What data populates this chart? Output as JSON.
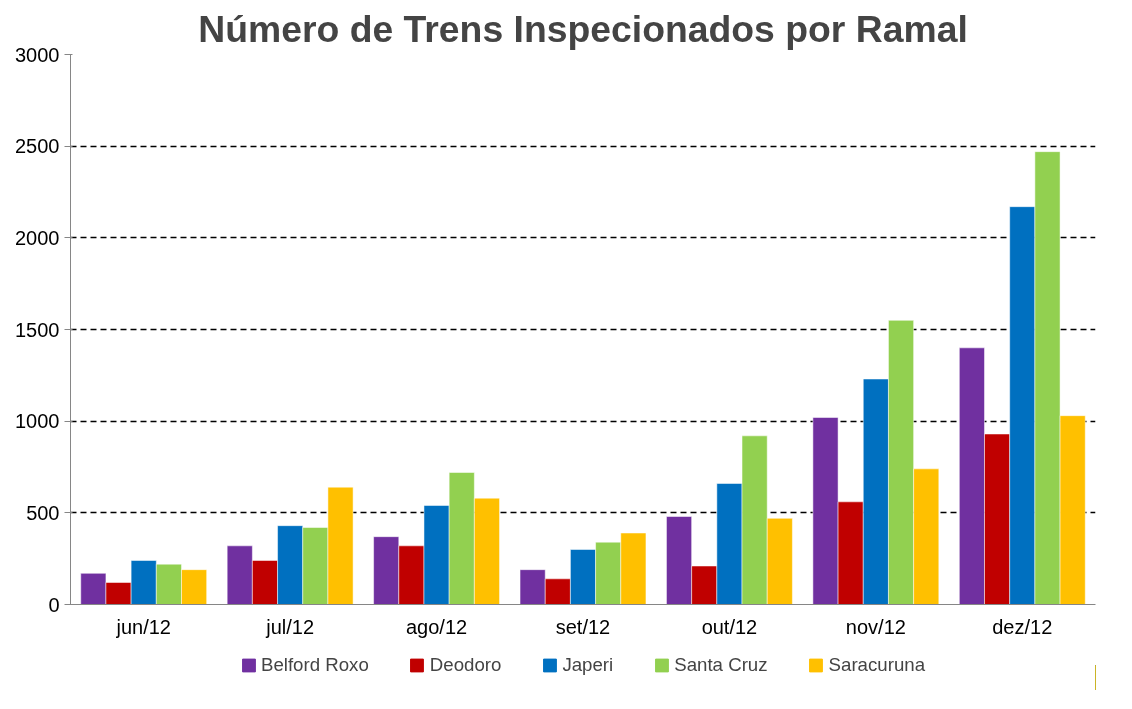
{
  "chart_data": {
    "type": "bar",
    "title": "Número de Trens Inspecionados por Ramal",
    "categories": [
      "jun/12",
      "jul/12",
      "ago/12",
      "set/12",
      "out/12",
      "nov/12",
      "dez/12"
    ],
    "series": [
      {
        "name": "Belford Roxo",
        "color": "#7030a0",
        "values": [
          170,
          320,
          370,
          190,
          480,
          1020,
          1400
        ]
      },
      {
        "name": "Deodoro",
        "color": "#c00000",
        "values": [
          120,
          240,
          320,
          140,
          210,
          560,
          930
        ]
      },
      {
        "name": "Japeri",
        "color": "#0070c0",
        "values": [
          240,
          430,
          540,
          300,
          660,
          1230,
          2170
        ]
      },
      {
        "name": "Santa Cruz",
        "color": "#92d050",
        "values": [
          220,
          420,
          720,
          340,
          920,
          1550,
          2470
        ]
      },
      {
        "name": "Saracuruna",
        "color": "#ffc000",
        "values": [
          190,
          640,
          580,
          390,
          470,
          740,
          1030
        ]
      }
    ],
    "ylim": [
      0,
      3000
    ],
    "yticks": [
      0,
      500,
      1000,
      1500,
      2000,
      2500,
      3000
    ],
    "grid": "y",
    "legend": "bottom"
  }
}
